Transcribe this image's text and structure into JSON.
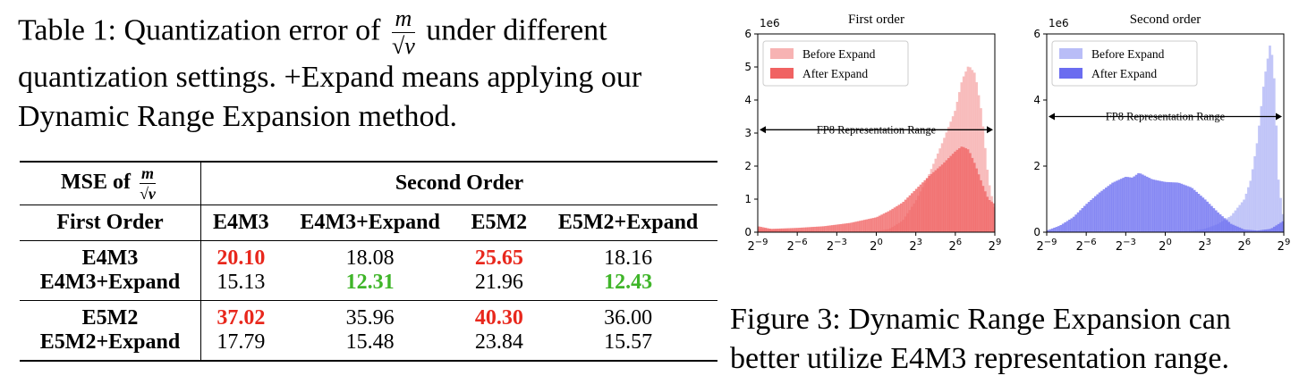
{
  "table": {
    "caption_line1_prefix": "Table 1:  Quantization error of",
    "caption_line1_suffix": "under different",
    "caption_line2": "quantization settings.  +Expand means applying our",
    "caption_line3": "Dynamic Range Expansion method.",
    "frac_num": "m",
    "frac_den": "√v",
    "corner_label": "MSE of",
    "row_group_header": "First Order",
    "col_group_header": "Second Order",
    "columns": [
      "E4M3",
      "E4M3+Expand",
      "E5M2",
      "E5M2+Expand"
    ],
    "rows": [
      {
        "label": "E4M3",
        "values": [
          "20.10",
          "18.08",
          "25.65",
          "18.16"
        ],
        "styles": [
          "red",
          "",
          "red",
          ""
        ]
      },
      {
        "label": "E4M3+Expand",
        "values": [
          "15.13",
          "12.31",
          "21.96",
          "12.43"
        ],
        "styles": [
          "",
          "green",
          "",
          "green"
        ]
      },
      {
        "label": "E5M2",
        "values": [
          "37.02",
          "35.96",
          "40.30",
          "36.00"
        ],
        "styles": [
          "red",
          "",
          "red",
          ""
        ]
      },
      {
        "label": "E5M2+Expand",
        "values": [
          "17.79",
          "15.48",
          "23.84",
          "15.57"
        ],
        "styles": [
          "",
          "",
          "",
          ""
        ]
      }
    ],
    "colors": {
      "red": "#e8271c",
      "green": "#3fb529"
    }
  },
  "figure": {
    "caption_line1": "Figure 3:  Dynamic Range Expansion can",
    "caption_line2": "better utilize E4M3 representation range."
  },
  "chart_data": [
    {
      "type": "area",
      "title": "First order",
      "scale_label": "1e6",
      "x_scale": "log2",
      "x_ticks": [
        "2^-9",
        "2^-6",
        "2^-3",
        "2^0",
        "2^3",
        "2^6",
        "2^9"
      ],
      "x_exponents": [
        -9,
        -6,
        -3,
        0,
        3,
        6,
        9
      ],
      "ylim": [
        0,
        6
      ],
      "y_ticks": [
        0,
        1,
        2,
        3,
        4,
        5,
        6
      ],
      "legend_position": "top-left",
      "annotation": "FP8 Representation Range",
      "annotation_range_exp": [
        -9,
        9
      ],
      "annotation_y": 3.1,
      "series": [
        {
          "name": "Before Expand",
          "color": "#f7b3b3",
          "x": [
            -9,
            -6,
            -3,
            0,
            1,
            2,
            3,
            4,
            5,
            6,
            6.5,
            7,
            7.5,
            8,
            8.5,
            9
          ],
          "y": [
            0.1,
            0.05,
            0.02,
            0.03,
            0.1,
            0.35,
            0.95,
            1.75,
            2.7,
            3.7,
            4.6,
            5.05,
            4.8,
            3.6,
            1.6,
            0.6
          ]
        },
        {
          "name": "After Expand",
          "color": "#f06262",
          "x": [
            -9,
            -8,
            -6,
            -4,
            -2,
            0,
            1,
            2,
            3,
            4,
            5,
            6,
            6.5,
            7,
            7.5,
            8,
            8.5,
            9
          ],
          "y": [
            0.18,
            0.1,
            0.13,
            0.18,
            0.28,
            0.45,
            0.65,
            0.9,
            1.3,
            1.7,
            2.05,
            2.45,
            2.6,
            2.5,
            2.05,
            1.5,
            1.0,
            0.85
          ]
        }
      ]
    },
    {
      "type": "area",
      "title": "Second order",
      "scale_label": "1e6",
      "x_scale": "log2",
      "x_ticks": [
        "2^-9",
        "2^-6",
        "2^-3",
        "2^0",
        "2^3",
        "2^6",
        "2^9"
      ],
      "x_exponents": [
        -9,
        -6,
        -3,
        0,
        3,
        6,
        9
      ],
      "ylim": [
        0,
        6
      ],
      "y_ticks": [
        0,
        2,
        4,
        6
      ],
      "legend_position": "top-left",
      "annotation": "FP8 Representation Range",
      "annotation_range_exp": [
        -9,
        9
      ],
      "annotation_y": 3.5,
      "series": [
        {
          "name": "Before Expand",
          "color": "#b9bdf7",
          "x": [
            -9,
            -6,
            -3,
            0,
            2,
            3,
            4,
            5,
            6,
            6.5,
            7,
            7.5,
            8,
            8.3,
            8.6,
            9
          ],
          "y": [
            0.03,
            0.02,
            0.02,
            0.02,
            0.04,
            0.1,
            0.25,
            0.5,
            1.0,
            1.6,
            2.8,
            4.6,
            5.8,
            4.5,
            1.5,
            0.3
          ]
        },
        {
          "name": "After Expand",
          "color": "#6a6cf0",
          "x": [
            -9,
            -8,
            -7,
            -6,
            -5,
            -4,
            -3,
            -2.5,
            -2,
            -1.5,
            -1,
            0,
            1,
            2,
            3,
            4,
            5,
            6,
            7,
            8,
            9
          ],
          "y": [
            0.05,
            0.2,
            0.45,
            0.85,
            1.2,
            1.5,
            1.68,
            1.65,
            1.8,
            1.7,
            1.6,
            1.52,
            1.5,
            1.35,
            1.0,
            0.6,
            0.25,
            0.08,
            0.05,
            0.1,
            0.35
          ]
        }
      ]
    }
  ]
}
